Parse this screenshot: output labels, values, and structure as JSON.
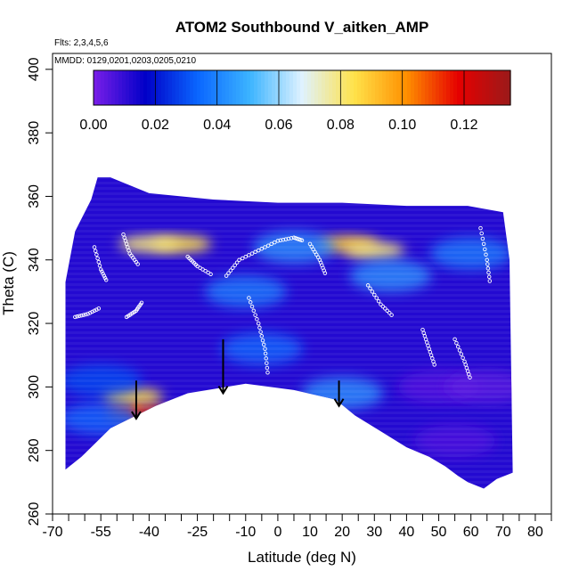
{
  "chart_data": {
    "type": "heatmap",
    "title": "ATOM2 Southbound V_aitken_AMP",
    "annotations": [
      "Flts: 2,3,4,5,6",
      "MMDD: 0129,0201,0203,0205,0210"
    ],
    "xlabel": "Latitude (deg N)",
    "ylabel": "Theta (C)",
    "xlim": [
      -70,
      85
    ],
    "ylim": [
      260,
      405
    ],
    "x_ticks": [
      -70,
      -55,
      -40,
      -25,
      -10,
      0,
      10,
      20,
      30,
      40,
      50,
      60,
      70,
      80
    ],
    "x_tick_labels": [
      "-70",
      "-55",
      "-40",
      "-25",
      "-10",
      "0",
      "10",
      "20",
      "30",
      "40",
      "50",
      "60",
      "70",
      "80"
    ],
    "x_minor_ticks": [
      -65,
      -60,
      -50,
      -45,
      -35,
      -30,
      -20,
      -15,
      -5,
      5,
      15,
      25,
      35,
      45,
      55,
      65,
      75,
      85
    ],
    "y_ticks": [
      260,
      280,
      300,
      320,
      340,
      360,
      380,
      400
    ],
    "y_tick_labels": [
      "260",
      "280",
      "300",
      "320",
      "340",
      "360",
      "380",
      "400"
    ],
    "colorbar": {
      "range": [
        0,
        0.135
      ],
      "ticks": [
        0,
        0.02,
        0.04,
        0.06,
        0.08,
        0.1,
        0.12
      ],
      "tick_labels": [
        "0.00",
        "0.02",
        "0.04",
        "0.06",
        "0.08",
        "0.10",
        "0.12"
      ],
      "colors": [
        "#7a1ee8",
        "#0000c8",
        "#0a66ff",
        "#3cb4ff",
        "#dff2ff",
        "#ffe24a",
        "#ff9000",
        "#e60000",
        "#9a1a1a"
      ]
    },
    "domain_outline": [
      [
        -66,
        274
      ],
      [
        -61,
        278
      ],
      [
        -56,
        283
      ],
      [
        -52,
        287
      ],
      [
        -46,
        290
      ],
      [
        -38,
        294
      ],
      [
        -28,
        298
      ],
      [
        -10,
        301
      ],
      [
        5,
        299
      ],
      [
        18,
        296
      ],
      [
        24,
        291
      ],
      [
        32,
        286
      ],
      [
        40,
        281
      ],
      [
        47,
        278
      ],
      [
        52,
        275
      ],
      [
        56,
        272
      ],
      [
        59,
        270
      ],
      [
        64,
        268
      ],
      [
        68,
        271
      ],
      [
        73,
        273
      ],
      [
        72,
        340
      ],
      [
        70,
        355
      ],
      [
        59,
        357
      ],
      [
        40,
        357
      ],
      [
        20,
        358
      ],
      [
        0,
        358
      ],
      [
        -20,
        359
      ],
      [
        -40,
        361
      ],
      [
        -52,
        366
      ],
      [
        -56,
        366
      ],
      [
        -58,
        359
      ],
      [
        -63,
        349
      ],
      [
        -66,
        333
      ]
    ],
    "background_value": 0.012,
    "high_value_regions": [
      {
        "lat": -44,
        "theta": 292,
        "value": 0.115
      },
      {
        "lat": -45,
        "theta": 297,
        "value": 0.085
      },
      {
        "lat": -30,
        "theta": 345,
        "value": 0.085
      },
      {
        "lat": -40,
        "theta": 345,
        "value": 0.08
      },
      {
        "lat": 22,
        "theta": 345,
        "value": 0.09
      },
      {
        "lat": 30,
        "theta": 343,
        "value": 0.08
      },
      {
        "lat": 5,
        "theta": 344,
        "value": 0.045
      },
      {
        "lat": 35,
        "theta": 335,
        "value": 0.045
      },
      {
        "lat": -10,
        "theta": 330,
        "value": 0.04
      },
      {
        "lat": -5,
        "theta": 312,
        "value": 0.035
      },
      {
        "lat": -55,
        "theta": 302,
        "value": 0.03
      },
      {
        "lat": -55,
        "theta": 290,
        "value": 0.035
      },
      {
        "lat": 20,
        "theta": 298,
        "value": 0.045
      },
      {
        "lat": 60,
        "theta": 342,
        "value": 0.04
      },
      {
        "lat": 50,
        "theta": 300,
        "value": 0.005
      },
      {
        "lat": 65,
        "theta": 300,
        "value": 0.004
      },
      {
        "lat": 55,
        "theta": 283,
        "value": 0.006
      }
    ],
    "arrows": [
      {
        "lat": -44,
        "theta_top": 302,
        "theta_bottom": 290
      },
      {
        "lat": -17,
        "theta_top": 315,
        "theta_bottom": 298
      },
      {
        "lat": 19,
        "theta_top": 302,
        "theta_bottom": 294
      }
    ],
    "sample_tracks": [
      [
        [
          -57,
          344
        ],
        [
          -55,
          337
        ],
        [
          -53,
          333
        ]
      ],
      [
        [
          -48,
          348
        ],
        [
          -46,
          342
        ],
        [
          -43,
          338
        ]
      ],
      [
        [
          -63,
          322
        ],
        [
          -59,
          323
        ],
        [
          -55,
          325
        ]
      ],
      [
        [
          -47,
          322
        ],
        [
          -44,
          324
        ],
        [
          -42,
          327
        ]
      ],
      [
        [
          -16,
          335
        ],
        [
          -12,
          340
        ],
        [
          -6,
          343
        ],
        [
          0,
          346
        ],
        [
          5,
          347
        ],
        [
          8,
          346
        ]
      ],
      [
        [
          -28,
          341
        ],
        [
          -25,
          338
        ],
        [
          -20,
          335
        ]
      ],
      [
        [
          10,
          345
        ],
        [
          13,
          340
        ],
        [
          15,
          335
        ]
      ],
      [
        [
          28,
          332
        ],
        [
          32,
          326
        ],
        [
          36,
          322
        ]
      ],
      [
        [
          45,
          318
        ],
        [
          47,
          312
        ],
        [
          49,
          306
        ]
      ],
      [
        [
          55,
          315
        ],
        [
          58,
          308
        ],
        [
          60,
          302
        ]
      ],
      [
        [
          63,
          350
        ],
        [
          65,
          340
        ],
        [
          66,
          332
        ]
      ],
      [
        [
          -9,
          328
        ],
        [
          -6,
          320
        ],
        [
          -4,
          312
        ],
        [
          -3,
          303
        ]
      ]
    ]
  }
}
